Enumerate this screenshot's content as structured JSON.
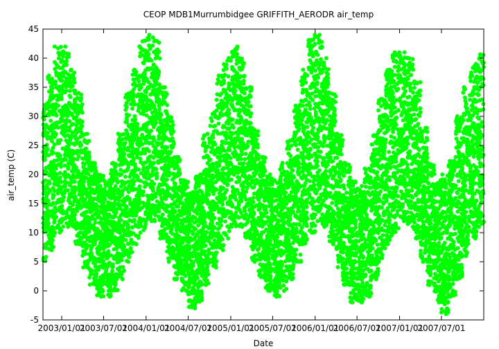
{
  "chart_data": {
    "type": "scatter",
    "title": "CEOP MDB1Murrumbidgee GRIFFITH_AERODR  air_temp",
    "xlabel": "Date",
    "ylabel": "air_temp (C)",
    "ylim": [
      -5,
      45
    ],
    "xlim": [
      "2002-10-12",
      "2007-12-31"
    ],
    "y_ticks": [
      -5,
      0,
      5,
      10,
      15,
      20,
      25,
      30,
      35,
      40,
      45
    ],
    "x_tick_dates": [
      "2003-01-01",
      "2003-07-01",
      "2004-01-01",
      "2004-07-01",
      "2005-01-01",
      "2005-07-01",
      "2006-01-01",
      "2006-07-01",
      "2007-01-01",
      "2007-07-01"
    ],
    "x_tick_labels": [
      "2003/01/01",
      "2003/07/01",
      "2004/01/01",
      "2004/07/01",
      "2005/01/01",
      "2005/07/01",
      "2006/01/01",
      "2006/07/01",
      "2007/01/01",
      "2007/07/01"
    ],
    "grid": false,
    "legend": "none",
    "series_color": "#00ff00",
    "monthly_range": [
      {
        "x": "2002-10",
        "y_min": 5,
        "y_max": 32
      },
      {
        "x": "2002-11",
        "y_min": 7,
        "y_max": 37
      },
      {
        "x": "2002-12",
        "y_min": 10,
        "y_max": 42
      },
      {
        "x": "2003-01",
        "y_min": 11,
        "y_max": 42
      },
      {
        "x": "2003-02",
        "y_min": 11,
        "y_max": 38
      },
      {
        "x": "2003-03",
        "y_min": 8,
        "y_max": 34
      },
      {
        "x": "2003-04",
        "y_min": 4,
        "y_max": 27
      },
      {
        "x": "2003-05",
        "y_min": 1,
        "y_max": 22
      },
      {
        "x": "2003-06",
        "y_min": -1,
        "y_max": 20
      },
      {
        "x": "2003-07",
        "y_min": -1,
        "y_max": 19
      },
      {
        "x": "2003-08",
        "y_min": 0,
        "y_max": 22
      },
      {
        "x": "2003-09",
        "y_min": 2,
        "y_max": 27
      },
      {
        "x": "2003-10",
        "y_min": 5,
        "y_max": 34
      },
      {
        "x": "2003-11",
        "y_min": 8,
        "y_max": 38
      },
      {
        "x": "2003-12",
        "y_min": 10,
        "y_max": 43
      },
      {
        "x": "2004-01",
        "y_min": 12,
        "y_max": 44
      },
      {
        "x": "2004-02",
        "y_min": 12,
        "y_max": 43
      },
      {
        "x": "2004-03",
        "y_min": 9,
        "y_max": 35
      },
      {
        "x": "2004-04",
        "y_min": 5,
        "y_max": 30
      },
      {
        "x": "2004-05",
        "y_min": 2,
        "y_max": 23
      },
      {
        "x": "2004-06",
        "y_min": 0,
        "y_max": 19
      },
      {
        "x": "2004-07",
        "y_min": -3,
        "y_max": 17
      },
      {
        "x": "2004-08",
        "y_min": -2,
        "y_max": 20
      },
      {
        "x": "2004-09",
        "y_min": 1,
        "y_max": 27
      },
      {
        "x": "2004-10",
        "y_min": 4,
        "y_max": 31
      },
      {
        "x": "2004-11",
        "y_min": 7,
        "y_max": 37
      },
      {
        "x": "2004-12",
        "y_min": 9,
        "y_max": 40
      },
      {
        "x": "2005-01",
        "y_min": 11,
        "y_max": 42
      },
      {
        "x": "2005-02",
        "y_min": 11,
        "y_max": 40
      },
      {
        "x": "2005-03",
        "y_min": 9,
        "y_max": 35
      },
      {
        "x": "2005-04",
        "y_min": 5,
        "y_max": 28
      },
      {
        "x": "2005-05",
        "y_min": 2,
        "y_max": 23
      },
      {
        "x": "2005-06",
        "y_min": 0,
        "y_max": 20
      },
      {
        "x": "2005-07",
        "y_min": -1,
        "y_max": 19
      },
      {
        "x": "2005-08",
        "y_min": 0,
        "y_max": 22
      },
      {
        "x": "2005-09",
        "y_min": 2,
        "y_max": 26
      },
      {
        "x": "2005-10",
        "y_min": 5,
        "y_max": 32
      },
      {
        "x": "2005-11",
        "y_min": 8,
        "y_max": 38
      },
      {
        "x": "2005-12",
        "y_min": 10,
        "y_max": 44
      },
      {
        "x": "2006-01",
        "y_min": 12,
        "y_max": 44
      },
      {
        "x": "2006-02",
        "y_min": 11,
        "y_max": 40
      },
      {
        "x": "2006-03",
        "y_min": 8,
        "y_max": 34
      },
      {
        "x": "2006-04",
        "y_min": 4,
        "y_max": 27
      },
      {
        "x": "2006-05",
        "y_min": 1,
        "y_max": 22
      },
      {
        "x": "2006-06",
        "y_min": -2,
        "y_max": 19
      },
      {
        "x": "2006-07",
        "y_min": -2,
        "y_max": 18
      },
      {
        "x": "2006-08",
        "y_min": -1,
        "y_max": 21
      },
      {
        "x": "2006-09",
        "y_min": 2,
        "y_max": 27
      },
      {
        "x": "2006-10",
        "y_min": 5,
        "y_max": 33
      },
      {
        "x": "2006-11",
        "y_min": 8,
        "y_max": 38
      },
      {
        "x": "2006-12",
        "y_min": 10,
        "y_max": 41
      },
      {
        "x": "2007-01",
        "y_min": 12,
        "y_max": 41
      },
      {
        "x": "2007-02",
        "y_min": 11,
        "y_max": 40
      },
      {
        "x": "2007-03",
        "y_min": 9,
        "y_max": 36
      },
      {
        "x": "2007-04",
        "y_min": 5,
        "y_max": 28
      },
      {
        "x": "2007-05",
        "y_min": 1,
        "y_max": 22
      },
      {
        "x": "2007-06",
        "y_min": -2,
        "y_max": 19
      },
      {
        "x": "2007-07",
        "y_min": -4,
        "y_max": 20
      },
      {
        "x": "2007-08",
        "y_min": -1,
        "y_max": 23
      },
      {
        "x": "2007-09",
        "y_min": 2,
        "y_max": 30
      },
      {
        "x": "2007-10",
        "y_min": 6,
        "y_max": 35
      },
      {
        "x": "2007-11",
        "y_min": 9,
        "y_max": 39
      },
      {
        "x": "2007-12",
        "y_min": 11,
        "y_max": 41
      }
    ]
  }
}
